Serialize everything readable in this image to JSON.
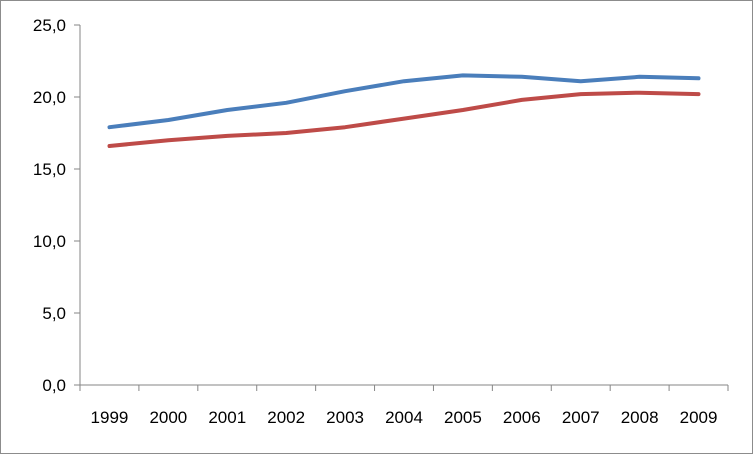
{
  "chart_data": {
    "type": "line",
    "title": "",
    "xlabel": "",
    "ylabel": "",
    "categories": [
      "1999",
      "2000",
      "2001",
      "2002",
      "2003",
      "2004",
      "2005",
      "2006",
      "2007",
      "2008",
      "2009"
    ],
    "ylim": [
      0,
      25
    ],
    "y_ticks": [
      "0,0",
      "5,0",
      "10,0",
      "15,0",
      "20,0",
      "25,0"
    ],
    "grid": false,
    "legend": "none",
    "series": [
      {
        "color": "#4a7ebb",
        "values": [
          17.9,
          18.4,
          19.1,
          19.6,
          20.4,
          21.1,
          21.5,
          21.4,
          21.1,
          21.4,
          21.3
        ]
      },
      {
        "color": "#be4b48",
        "values": [
          16.6,
          17.0,
          17.3,
          17.5,
          17.9,
          18.5,
          19.1,
          19.8,
          20.2,
          20.3,
          20.2
        ]
      }
    ]
  }
}
